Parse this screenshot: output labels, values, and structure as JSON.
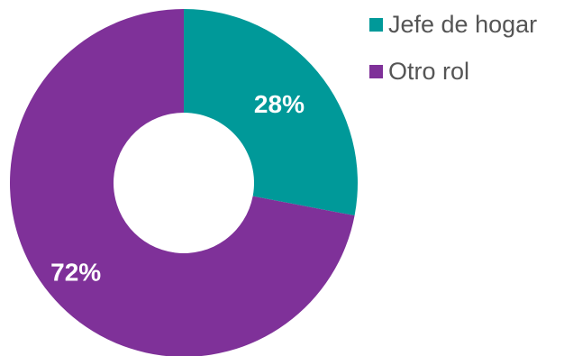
{
  "chart_data": {
    "type": "pie",
    "title": "",
    "series": [
      {
        "name": "Jefe de hogar",
        "value": 28,
        "label": "28%",
        "color": "#009999"
      },
      {
        "name": "Otro rol",
        "value": 72,
        "label": "72%",
        "color": "#7F3199"
      }
    ],
    "donut": true,
    "legend_position": "right"
  }
}
